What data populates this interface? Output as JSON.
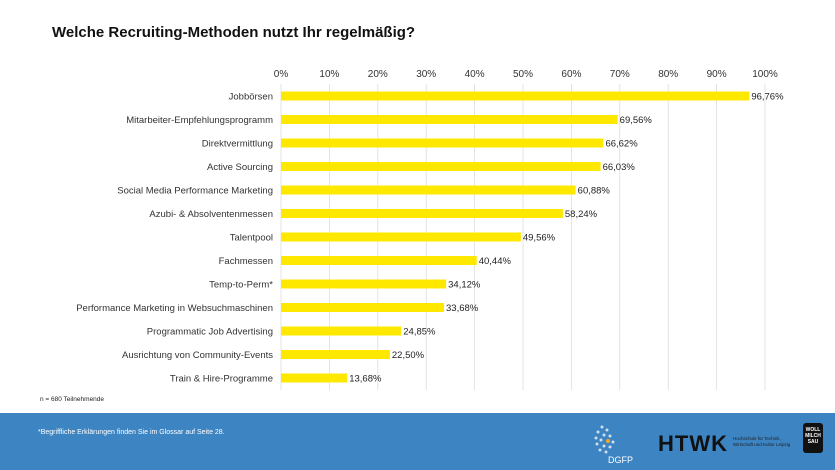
{
  "title": "Welche Recruiting-Methoden nutzt Ihr regelmäßig?",
  "note": "n = 680 Teilnehmende",
  "footnote": "*Begriffliche  Erklärungen  finden  Sie im Glossar  auf Seite 28.",
  "logos": {
    "dgfp": "DGFP",
    "htwk": "HTWK",
    "htwk_sub": "Hochschule für Technik, Wirtschaft und Kultur Leipzig",
    "wms": "WOLL MILCH SAU"
  },
  "colors": {
    "bar": "#ffe800",
    "footer": "#3d84c3",
    "grid": "#dddddd"
  },
  "chart_data": {
    "type": "bar",
    "orientation": "horizontal",
    "title": "Welche Recruiting-Methoden nutzt Ihr regelmäßig?",
    "categories": [
      "Jobbörsen",
      "Mitarbeiter-Empfehlungsprogramm",
      "Direktvermittlung",
      "Active Sourcing",
      "Social Media Performance Marketing",
      "Azubi- & Absolventenmessen",
      "Talentpool",
      "Fachmessen",
      "Temp-to-Perm*",
      "Performance Marketing in Websuchmaschinen",
      "Programmatic Job Advertising",
      "Ausrichtung von Community-Events",
      "Train & Hire-Programme"
    ],
    "values": [
      96.76,
      69.56,
      66.62,
      66.03,
      60.88,
      58.24,
      49.56,
      40.44,
      34.12,
      33.68,
      24.85,
      22.5,
      13.68
    ],
    "data_labels": [
      "96,76%",
      "69,56%",
      "66,62%",
      "66,03%",
      "60,88%",
      "58,24%",
      "49,56%",
      "40,44%",
      "34,12%",
      "33,68%",
      "24,85%",
      "22,50%",
      "13,68%"
    ],
    "xlim": [
      0,
      100
    ],
    "x_ticks": [
      "0%",
      "10%",
      "20%",
      "30%",
      "40%",
      "50%",
      "60%",
      "70%",
      "80%",
      "90%",
      "100%"
    ],
    "x_axis_position": "top",
    "grid": true
  }
}
